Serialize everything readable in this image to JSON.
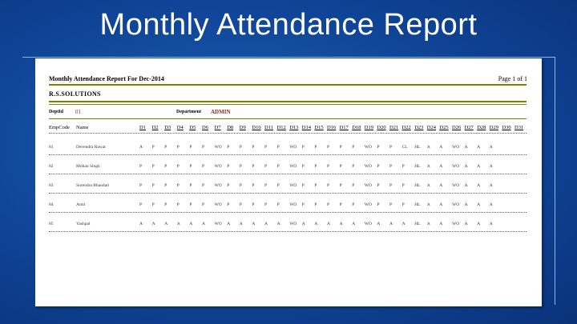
{
  "slide": {
    "title": "Monthly Attendance Report"
  },
  "report": {
    "title": "Monthly Attendance Report For Dec-2014",
    "page": "Page 1 of 1",
    "company": "R.S.SOLUTIONS",
    "dept_id_label": "DeptId",
    "dept_id_value": "01",
    "department_label": "Department",
    "department_value": "ADMIN",
    "columns": {
      "emp_code": "EmpCode",
      "name": "Name",
      "days": [
        "D1",
        "D2",
        "D3",
        "D4",
        "D5",
        "D6",
        "D7",
        "D8",
        "D9",
        "D10",
        "D11",
        "D12",
        "D13",
        "D14",
        "D15",
        "D16",
        "D17",
        "D18",
        "D19",
        "D20",
        "D21",
        "D22",
        "D23",
        "D24",
        "D25",
        "D26",
        "D27",
        "D28",
        "D29",
        "D30",
        "D31"
      ]
    },
    "rows": [
      {
        "code": "01",
        "name": "Devendra Rawat",
        "days": [
          "A",
          "P",
          "P",
          "P",
          "P",
          "P",
          "WO",
          "P",
          "P",
          "P",
          "P",
          "P",
          "WO",
          "P",
          "P",
          "P",
          "P",
          "P",
          "WO",
          "P",
          "P",
          "CL",
          "HL",
          "A",
          "A",
          "WO",
          "A",
          "A",
          "A",
          "",
          ""
        ]
      },
      {
        "code": "02",
        "name": "Mohan Singh",
        "days": [
          "P",
          "P",
          "P",
          "P",
          "P",
          "P",
          "WO",
          "P",
          "P",
          "P",
          "P",
          "P",
          "WO",
          "P",
          "P",
          "P",
          "P",
          "P",
          "WO",
          "P",
          "P",
          "P",
          "HL",
          "A",
          "A",
          "WO",
          "A",
          "A",
          "A",
          "",
          ""
        ]
      },
      {
        "code": "03",
        "name": "Surendra Bhandari",
        "days": [
          "P",
          "P",
          "P",
          "P",
          "P",
          "P",
          "WO",
          "P",
          "P",
          "P",
          "P",
          "P",
          "WO",
          "P",
          "P",
          "P",
          "P",
          "P",
          "WO",
          "P",
          "P",
          "P",
          "HL",
          "A",
          "A",
          "WO",
          "A",
          "A",
          "A",
          "",
          ""
        ]
      },
      {
        "code": "04",
        "name": "Amit",
        "days": [
          "P",
          "P",
          "P",
          "P",
          "P",
          "P",
          "WO",
          "P",
          "P",
          "P",
          "P",
          "P",
          "WO",
          "P",
          "P",
          "P",
          "P",
          "P",
          "WO",
          "P",
          "P",
          "P",
          "HL",
          "A",
          "A",
          "WO",
          "A",
          "A",
          "A",
          "",
          ""
        ]
      },
      {
        "code": "05",
        "name": "Yashpal",
        "days": [
          "A",
          "A",
          "A",
          "A",
          "A",
          "A",
          "WO",
          "A",
          "A",
          "A",
          "A",
          "A",
          "WO",
          "A",
          "A",
          "A",
          "A",
          "A",
          "WO",
          "A",
          "A",
          "A",
          "HL",
          "A",
          "A",
          "WO",
          "A",
          "A",
          "A",
          "",
          ""
        ]
      }
    ]
  }
}
